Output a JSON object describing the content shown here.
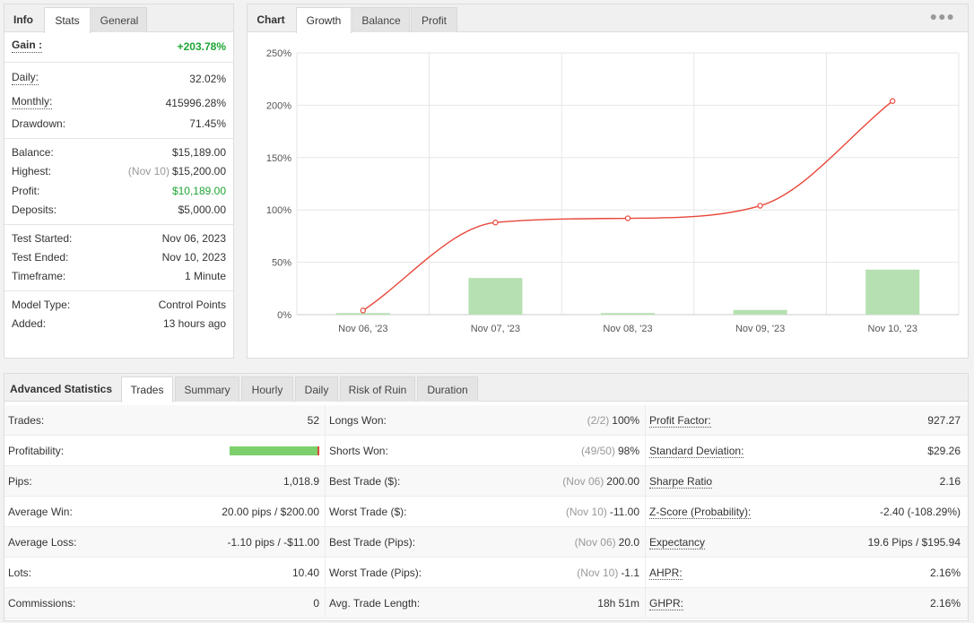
{
  "info": {
    "tabs": [
      "Info",
      "Stats",
      "General"
    ],
    "gain": {
      "label": "Gain :",
      "value": "+203.78%"
    },
    "daily": {
      "label": "Daily:",
      "value": "32.02%"
    },
    "monthly": {
      "label": "Monthly:",
      "value": "415996.28%"
    },
    "drawdown": {
      "label": "Drawdown:",
      "value": "71.45%"
    },
    "balance": {
      "label": "Balance:",
      "value": "$15,189.00"
    },
    "highest": {
      "label": "Highest:",
      "date": "(Nov 10)",
      "value": "$15,200.00"
    },
    "profit": {
      "label": "Profit:",
      "value": "$10,189.00"
    },
    "deposits": {
      "label": "Deposits:",
      "value": "$5,000.00"
    },
    "test_started": {
      "label": "Test Started:",
      "value": "Nov 06, 2023"
    },
    "test_ended": {
      "label": "Test Ended:",
      "value": "Nov 10, 2023"
    },
    "timeframe": {
      "label": "Timeframe:",
      "value": "1 Minute"
    },
    "model_type": {
      "label": "Model Type:",
      "value": "Control Points"
    },
    "added": {
      "label": "Added:",
      "value": "13 hours ago"
    }
  },
  "chart_panel": {
    "tabs": [
      "Chart",
      "Growth",
      "Balance",
      "Profit"
    ],
    "menu_icon": "ellipsis-icon"
  },
  "chart_data": {
    "type": "line",
    "categories": [
      "Nov 06, '23",
      "Nov 07, '23",
      "Nov 08, '23",
      "Nov 09, '23",
      "Nov 10, '23"
    ],
    "series": [
      {
        "type": "line",
        "color": "#e8473a",
        "values": [
          4,
          88,
          92,
          104,
          204
        ]
      },
      {
        "type": "bar",
        "color": "#b6e0b1",
        "values": [
          1.5,
          35,
          1.5,
          4.5,
          43
        ]
      }
    ],
    "ylim": [
      0,
      250
    ],
    "yticks": [
      "0%",
      "50%",
      "100%",
      "150%",
      "200%",
      "250%"
    ],
    "grid": true
  },
  "advanced": {
    "tabs": [
      "Advanced Statistics",
      "Trades",
      "Summary",
      "Hourly",
      "Daily",
      "Risk of Ruin",
      "Duration"
    ],
    "col1": [
      {
        "label": "Trades:",
        "value": "52"
      },
      {
        "label": "Profitability:",
        "value": ""
      },
      {
        "label": "Pips:",
        "value": "1,018.9"
      },
      {
        "label": "Average Win:",
        "value": "20.00 pips / $200.00"
      },
      {
        "label": "Average Loss:",
        "value": "-1.10 pips / -$11.00"
      },
      {
        "label": "Lots:",
        "value": "10.40"
      },
      {
        "label": "Commissions:",
        "value": "0"
      }
    ],
    "profitability_fraction": 0.98,
    "col2": [
      {
        "label": "Longs Won:",
        "muted": "(2/2)",
        "value": "100%"
      },
      {
        "label": "Shorts Won:",
        "muted": "(49/50)",
        "value": "98%"
      },
      {
        "label": "Best Trade ($):",
        "muted": "(Nov 06)",
        "value": "200.00"
      },
      {
        "label": "Worst Trade ($):",
        "muted": "(Nov 10)",
        "value": "-11.00"
      },
      {
        "label": "Best Trade (Pips):",
        "muted": "(Nov 06)",
        "value": "20.0"
      },
      {
        "label": "Worst Trade (Pips):",
        "muted": "(Nov 10)",
        "value": "-1.1"
      },
      {
        "label": "Avg. Trade Length:",
        "muted": "",
        "value": "18h 51m"
      }
    ],
    "col3": [
      {
        "label": "Profit Factor:",
        "value": "927.27"
      },
      {
        "label": "Standard Deviation:",
        "value": "$29.26"
      },
      {
        "label": "Sharpe Ratio",
        "value": "2.16"
      },
      {
        "label": "Z-Score (Probability):",
        "value": "-2.40 (-108.29%)"
      },
      {
        "label": "Expectancy",
        "value": "19.6 Pips / $195.94"
      },
      {
        "label": "AHPR:",
        "value": "2.16%"
      },
      {
        "label": "GHPR:",
        "value": "2.16%"
      }
    ]
  }
}
